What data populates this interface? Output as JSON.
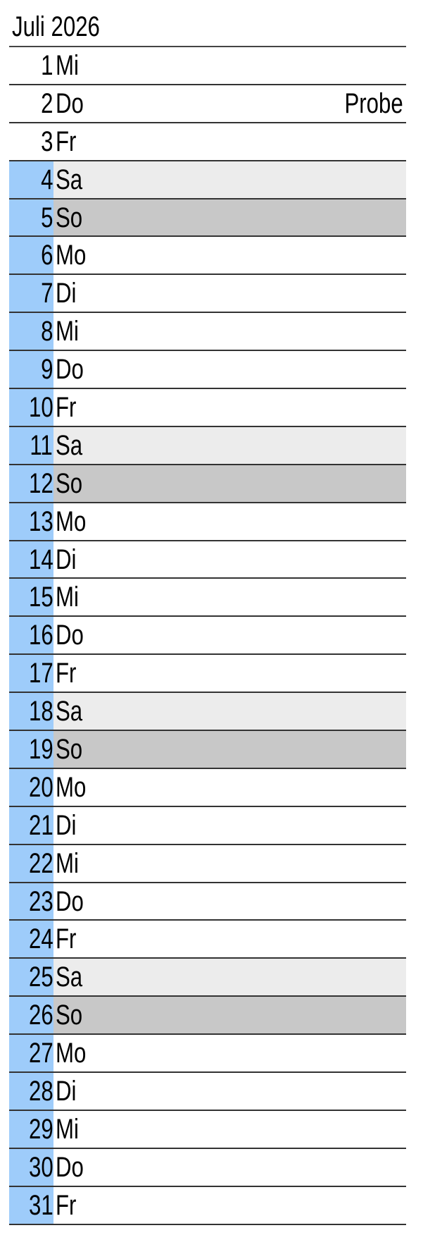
{
  "title": "Juli 2026",
  "colors": {
    "highlight": "#9eccfa",
    "saturday": "#ececec",
    "sunday": "#c8c8c8"
  },
  "days": [
    {
      "num": "1",
      "day": "Mi",
      "note": "",
      "hl": false
    },
    {
      "num": "2",
      "day": "Do",
      "note": "Probe",
      "hl": false
    },
    {
      "num": "3",
      "day": "Fr",
      "note": "",
      "hl": false
    },
    {
      "num": "4",
      "day": "Sa",
      "note": "",
      "hl": true
    },
    {
      "num": "5",
      "day": "So",
      "note": "",
      "hl": true
    },
    {
      "num": "6",
      "day": "Mo",
      "note": "",
      "hl": true
    },
    {
      "num": "7",
      "day": "Di",
      "note": "",
      "hl": true
    },
    {
      "num": "8",
      "day": "Mi",
      "note": "",
      "hl": true
    },
    {
      "num": "9",
      "day": "Do",
      "note": "",
      "hl": true
    },
    {
      "num": "10",
      "day": "Fr",
      "note": "",
      "hl": true
    },
    {
      "num": "11",
      "day": "Sa",
      "note": "",
      "hl": true
    },
    {
      "num": "12",
      "day": "So",
      "note": "",
      "hl": true
    },
    {
      "num": "13",
      "day": "Mo",
      "note": "",
      "hl": true
    },
    {
      "num": "14",
      "day": "Di",
      "note": "",
      "hl": true
    },
    {
      "num": "15",
      "day": "Mi",
      "note": "",
      "hl": true
    },
    {
      "num": "16",
      "day": "Do",
      "note": "",
      "hl": true
    },
    {
      "num": "17",
      "day": "Fr",
      "note": "",
      "hl": true
    },
    {
      "num": "18",
      "day": "Sa",
      "note": "",
      "hl": true
    },
    {
      "num": "19",
      "day": "So",
      "note": "",
      "hl": true
    },
    {
      "num": "20",
      "day": "Mo",
      "note": "",
      "hl": true
    },
    {
      "num": "21",
      "day": "Di",
      "note": "",
      "hl": true
    },
    {
      "num": "22",
      "day": "Mi",
      "note": "",
      "hl": true
    },
    {
      "num": "23",
      "day": "Do",
      "note": "",
      "hl": true
    },
    {
      "num": "24",
      "day": "Fr",
      "note": "",
      "hl": true
    },
    {
      "num": "25",
      "day": "Sa",
      "note": "",
      "hl": true
    },
    {
      "num": "26",
      "day": "So",
      "note": "",
      "hl": true
    },
    {
      "num": "27",
      "day": "Mo",
      "note": "",
      "hl": true
    },
    {
      "num": "28",
      "day": "Di",
      "note": "",
      "hl": true
    },
    {
      "num": "29",
      "day": "Mi",
      "note": "",
      "hl": true
    },
    {
      "num": "30",
      "day": "Do",
      "note": "",
      "hl": true
    },
    {
      "num": "31",
      "day": "Fr",
      "note": "",
      "hl": true
    }
  ]
}
